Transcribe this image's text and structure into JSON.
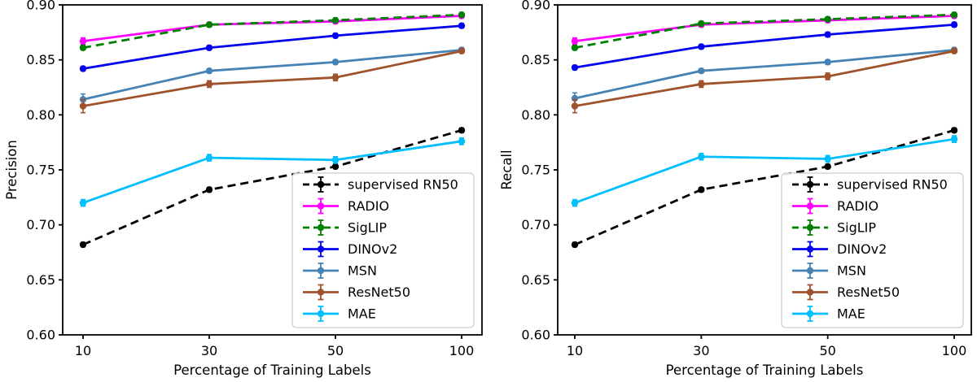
{
  "figure": {
    "background": "#ffffff",
    "text_color": "#000000",
    "legend_border_color": "#cccccc"
  },
  "chart_data": [
    {
      "type": "line",
      "title": "",
      "xlabel": "Percentage of Training Labels",
      "ylabel": "Precision",
      "x_scale": "categorical",
      "categories": [
        10,
        30,
        50,
        100
      ],
      "x_tick_labels": [
        "10",
        "30",
        "50",
        "100"
      ],
      "y_tick_labels": [
        "0.90",
        "0.85",
        "0.80",
        "0.75",
        "0.70",
        "0.65",
        "0.60"
      ],
      "ylim": [
        0.6,
        0.9
      ],
      "grid": false,
      "legend_position": "lower right",
      "series": [
        {
          "name": "supervised RN50",
          "color": "#000000",
          "style": "dashed",
          "marker": "circle",
          "values": [
            0.682,
            0.732,
            0.753,
            0.786
          ],
          "err": [
            0.002,
            0.002,
            0.002,
            0.002
          ]
        },
        {
          "name": "RADIO",
          "color": "#FF00FF",
          "style": "solid",
          "marker": "circle",
          "values": [
            0.867,
            0.882,
            0.885,
            0.89
          ],
          "err": [
            0.003,
            0.002,
            0.002,
            0.002
          ]
        },
        {
          "name": "SigLIP",
          "color": "#008000",
          "style": "dashed",
          "marker": "circle",
          "values": [
            0.861,
            0.882,
            0.886,
            0.891
          ],
          "err": [
            0.002,
            0.002,
            0.002,
            0.002
          ]
        },
        {
          "name": "DINOv2",
          "color": "#0202EE",
          "style": "solid",
          "marker": "circle",
          "values": [
            0.842,
            0.861,
            0.872,
            0.881
          ],
          "err": [
            0.002,
            0.002,
            0.002,
            0.002
          ]
        },
        {
          "name": "MSN",
          "color": "#4682B4",
          "style": "solid",
          "marker": "circle",
          "values": [
            0.814,
            0.84,
            0.848,
            0.859
          ],
          "err": [
            0.005,
            0.002,
            0.002,
            0.002
          ]
        },
        {
          "name": "ResNet50",
          "color": "#A0522D",
          "style": "solid",
          "marker": "circle",
          "values": [
            0.808,
            0.828,
            0.834,
            0.858
          ],
          "err": [
            0.006,
            0.003,
            0.003,
            0.002
          ]
        },
        {
          "name": "MAE",
          "color": "#00BFFF",
          "style": "solid",
          "marker": "circle",
          "values": [
            0.72,
            0.761,
            0.759,
            0.776
          ],
          "err": [
            0.003,
            0.003,
            0.003,
            0.003
          ]
        }
      ]
    },
    {
      "type": "line",
      "title": "",
      "xlabel": "Percentage of Training Labels",
      "ylabel": "Recall",
      "x_scale": "categorical",
      "categories": [
        10,
        30,
        50,
        100
      ],
      "x_tick_labels": [
        "10",
        "30",
        "50",
        "100"
      ],
      "y_tick_labels": [
        "0.90",
        "0.85",
        "0.80",
        "0.75",
        "0.70",
        "0.65",
        "0.60"
      ],
      "ylim": [
        0.6,
        0.9
      ],
      "grid": false,
      "legend_position": "lower right",
      "series": [
        {
          "name": "supervised RN50",
          "color": "#000000",
          "style": "dashed",
          "marker": "circle",
          "values": [
            0.682,
            0.732,
            0.753,
            0.786
          ],
          "err": [
            0.002,
            0.002,
            0.002,
            0.002
          ]
        },
        {
          "name": "RADIO",
          "color": "#FF00FF",
          "style": "solid",
          "marker": "circle",
          "values": [
            0.867,
            0.882,
            0.886,
            0.89
          ],
          "err": [
            0.003,
            0.002,
            0.002,
            0.002
          ]
        },
        {
          "name": "SigLIP",
          "color": "#008000",
          "style": "dashed",
          "marker": "circle",
          "values": [
            0.861,
            0.883,
            0.887,
            0.891
          ],
          "err": [
            0.002,
            0.002,
            0.002,
            0.002
          ]
        },
        {
          "name": "DINOv2",
          "color": "#0202EE",
          "style": "solid",
          "marker": "circle",
          "values": [
            0.843,
            0.862,
            0.873,
            0.882
          ],
          "err": [
            0.002,
            0.002,
            0.002,
            0.002
          ]
        },
        {
          "name": "MSN",
          "color": "#4682B4",
          "style": "solid",
          "marker": "circle",
          "values": [
            0.815,
            0.84,
            0.848,
            0.859
          ],
          "err": [
            0.005,
            0.002,
            0.002,
            0.002
          ]
        },
        {
          "name": "ResNet50",
          "color": "#A0522D",
          "style": "solid",
          "marker": "circle",
          "values": [
            0.808,
            0.828,
            0.835,
            0.858
          ],
          "err": [
            0.006,
            0.003,
            0.003,
            0.002
          ]
        },
        {
          "name": "MAE",
          "color": "#00BFFF",
          "style": "solid",
          "marker": "circle",
          "values": [
            0.72,
            0.762,
            0.76,
            0.778
          ],
          "err": [
            0.003,
            0.003,
            0.003,
            0.003
          ]
        }
      ]
    }
  ]
}
